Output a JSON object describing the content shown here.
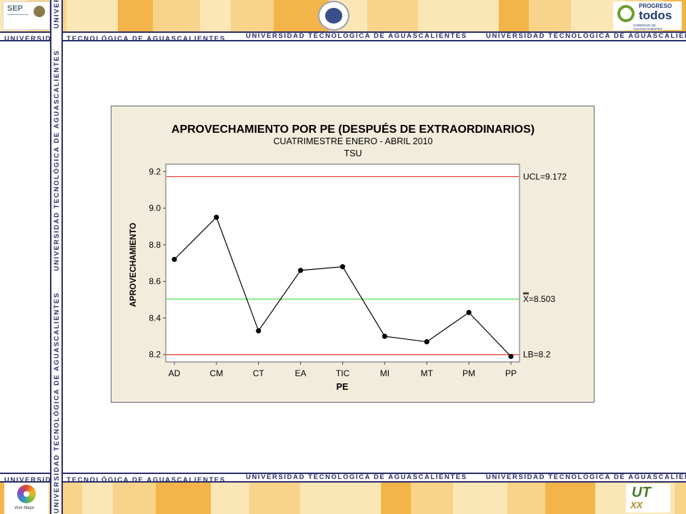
{
  "header": {
    "strip_text": "UNIVERSIDAD TECNOLÓGICA DE AGUASCALIENTES",
    "logos": {
      "sep": "SEP",
      "progreso_line1": "PROGRESO",
      "progreso_line2": "todos",
      "progreso_sub": "GOBIERNO DE AGUASCALIENTES"
    }
  },
  "footer": {
    "strip_text": "UNIVERSIDAD TECNOLÓGICA DE AGUASCALIENTES",
    "logos": {
      "vivir": "Vivir Mejor",
      "ut": "UT",
      "xx": "XX"
    }
  },
  "sidebar": {
    "strip_text": "UNIVERSIDAD TECNOLÓGICA DE AGUASCALIENTES"
  },
  "colors": {
    "strip_text": "#2a2f6a",
    "band_light": "#fbe6b6",
    "band_mid": "#f8d48a",
    "band_dark": "#f3b54a",
    "chart_bg": "#f2ecdc",
    "ucl_line": "#e8322a",
    "mean_line": "#4cd94c",
    "series": "#000000"
  },
  "chart_data": {
    "type": "line",
    "title": "APROVECHAMIENTO POR PE (DESPUÉS DE EXTRAORDINARIOS)",
    "subtitle": "CUATRIMESTRE ENERO - ABRIL 2010",
    "subtitle2": "TSU",
    "xlabel": "PE",
    "ylabel": "APROVECHAMIENTO",
    "categories": [
      "AD",
      "CM",
      "CT",
      "EA",
      "TIC",
      "MI",
      "MT",
      "PM",
      "PP"
    ],
    "values": [
      8.72,
      8.95,
      8.33,
      8.66,
      8.68,
      8.3,
      8.27,
      8.43,
      8.19
    ],
    "ylim": [
      8.16,
      9.24
    ],
    "yticks": [
      "8.2",
      "8.4",
      "8.6",
      "8.8",
      "9.0",
      "9.2"
    ],
    "control_lines": {
      "ucl": {
        "value": 9.172,
        "label": "UCL=9.172"
      },
      "mean": {
        "value": 8.503,
        "label_prefix": "X",
        "label_suffix": "=8.503"
      },
      "lcl": {
        "value": 8.2,
        "label": "LB=8.2"
      }
    },
    "grid": false
  }
}
